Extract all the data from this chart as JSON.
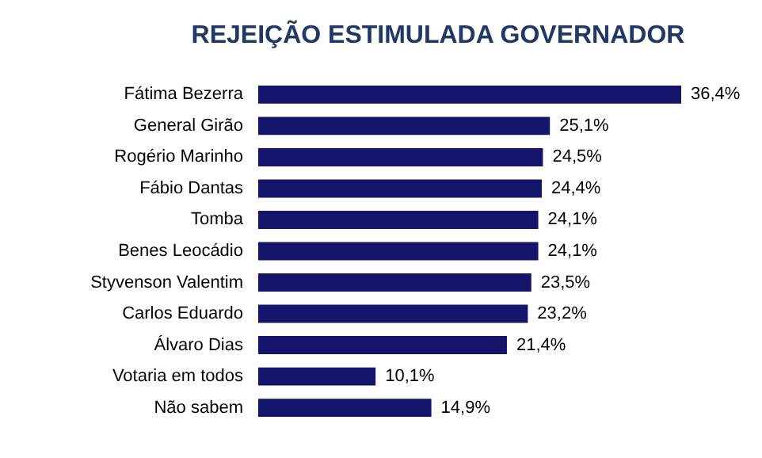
{
  "chart_data": {
    "type": "bar",
    "orientation": "horizontal",
    "title": "REJEIÇÃO ESTIMULADA GOVERNADOR",
    "categories": [
      "Fátima Bezerra",
      "General Girão",
      "Rogério Marinho",
      "Fábio Dantas",
      "Tomba",
      "Benes Leocádio",
      "Styvenson Valentim",
      "Carlos Eduardo",
      "Álvaro Dias",
      "Votaria em todos",
      "Não sabem"
    ],
    "values": [
      36.4,
      25.1,
      24.5,
      24.4,
      24.1,
      24.1,
      23.5,
      23.2,
      21.4,
      10.1,
      14.9
    ],
    "value_labels": [
      "36,4%",
      "25,1%",
      "24,5%",
      "24,4%",
      "24,1%",
      "24,1%",
      "23,5%",
      "23,2%",
      "21,4%",
      "10,1%",
      "14,9%"
    ],
    "color": "#14146b"
  }
}
